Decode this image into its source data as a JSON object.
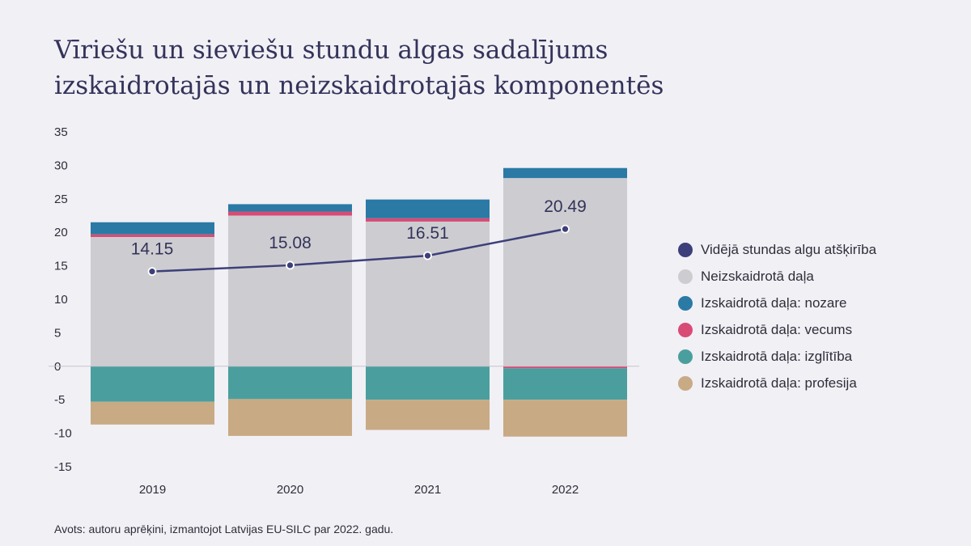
{
  "header": {
    "title_line1": "Vīriešu un sieviešu stundu algas sadalījums",
    "title_line2": "izskaidrotajās un neizskaidrotajās komponentēs"
  },
  "legend": {
    "items": [
      {
        "label": "Vidējā stundas algu atšķirība",
        "color": "#3d3f7a"
      },
      {
        "label": "Neizskaidrotā daļa",
        "color": "#cdcdd1"
      },
      {
        "label": "Izskaidrotā daļa: nozare",
        "color": "#2a7aa5"
      },
      {
        "label": "Izskaidrotā daļa: vecums",
        "color": "#d84b75"
      },
      {
        "label": "Izskaidrotā daļa: izglītība",
        "color": "#4a9f9e"
      },
      {
        "label": "Izskaidrotā daļa: profesija",
        "color": "#c8aa85"
      }
    ]
  },
  "footer": {
    "source": "Avots: autoru aprēķini, izmantojot Latvijas EU-SILC par 2022. gadu."
  },
  "chart_data": {
    "type": "bar",
    "stacked": true,
    "categories": [
      "2019",
      "2020",
      "2021",
      "2022"
    ],
    "ylim": [
      -15,
      35
    ],
    "yticks": [
      "35",
      "30",
      "25",
      "20",
      "15",
      "10",
      "5",
      "0",
      "-5",
      "-10",
      "-15"
    ],
    "grid": false,
    "legend_position": "right",
    "series": [
      {
        "name": "Neizskaidrotā daļa",
        "color": "#cdcdd1",
        "values": [
          19.3,
          22.5,
          21.6,
          28.1
        ]
      },
      {
        "name": "Izskaidrotā daļa: vecums",
        "color": "#d84b75",
        "values": [
          0.4,
          0.6,
          0.5,
          -0.3
        ]
      },
      {
        "name": "Izskaidrotā daļa: nozare",
        "color": "#2a7aa5",
        "values": [
          1.8,
          1.1,
          2.8,
          1.5
        ]
      },
      {
        "name": "Izskaidrotā daļa: izglītība",
        "color": "#4a9f9e",
        "values": [
          -5.3,
          -4.9,
          -5.0,
          -4.7
        ]
      },
      {
        "name": "Izskaidrotā daļa: profesija",
        "color": "#c8aa85",
        "values": [
          -3.4,
          -5.5,
          -4.5,
          -5.5
        ]
      }
    ],
    "line": {
      "name": "Vidējā stundas algu atšķirība",
      "color": "#3d3f7a",
      "values": [
        14.15,
        15.08,
        16.51,
        20.49
      ],
      "labels": [
        "14.15",
        "15.08",
        "16.51",
        "20.49"
      ]
    }
  }
}
